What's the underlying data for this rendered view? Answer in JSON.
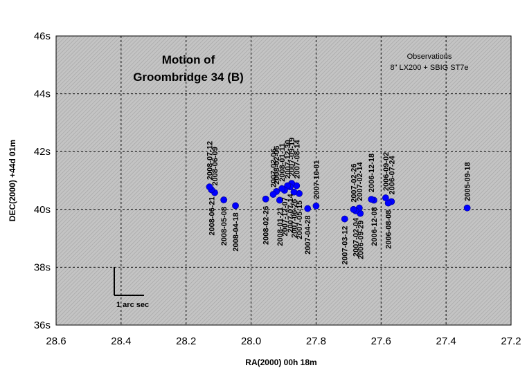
{
  "chart_data": {
    "type": "scatter",
    "title_lines": [
      "Motion of",
      "Groombridge 34 (B)"
    ],
    "note_lines": [
      "Observations",
      "8\" LX200 + SBIG ST7e"
    ],
    "xlabel": "RA(2000) 00h 18m",
    "ylabel": "DEC(2000) +44d 01m",
    "xlim": [
      28.6,
      27.2
    ],
    "ylim": [
      36,
      46
    ],
    "x_reversed": true,
    "x_ticks": [
      "28.6",
      "28.4",
      "28.2",
      "28.0",
      "27.8",
      "27.6",
      "27.4",
      "27.2"
    ],
    "y_ticks": [
      "36s",
      "38s",
      "40s",
      "42s",
      "44s",
      "46s"
    ],
    "grid": true,
    "scale_bar_label": "1 arc sec",
    "points": [
      {
        "x": 27.335,
        "y": 40.05,
        "label": "2005-09-18",
        "pos": "above"
      },
      {
        "x": 27.568,
        "y": 40.27,
        "label": "2006-07-24",
        "pos": "above"
      },
      {
        "x": 27.578,
        "y": 40.22,
        "label": "2006-08-08",
        "pos": "below"
      },
      {
        "x": 27.586,
        "y": 40.4,
        "label": "2006-09-02",
        "pos": "above"
      },
      {
        "x": 27.622,
        "y": 40.32,
        "label": "2006-12-08",
        "pos": "below"
      },
      {
        "x": 27.63,
        "y": 40.35,
        "label": "2006-12-18",
        "pos": "above"
      },
      {
        "x": 27.664,
        "y": 39.86,
        "label": "2006-09-29",
        "pos": "below"
      },
      {
        "x": 27.667,
        "y": 40.05,
        "label": "2007-02-14",
        "pos": "above"
      },
      {
        "x": 27.678,
        "y": 39.95,
        "label": "2007-02-04",
        "pos": "below"
      },
      {
        "x": 27.685,
        "y": 40.0,
        "label": "2007-02-26",
        "pos": "above"
      },
      {
        "x": 27.712,
        "y": 39.67,
        "label": "2007-03-12",
        "pos": "below"
      },
      {
        "x": 27.8,
        "y": 40.12,
        "label": "2007-10-01",
        "pos": "above"
      },
      {
        "x": 27.826,
        "y": 40.03,
        "label": "2007-04-28",
        "pos": "below"
      },
      {
        "x": 27.852,
        "y": 40.55,
        "label": "2007-05-15",
        "pos": "below"
      },
      {
        "x": 27.86,
        "y": 40.82,
        "label": "2007-08-14",
        "pos": "above"
      },
      {
        "x": 27.868,
        "y": 40.6,
        "label": "2007-06-26",
        "pos": "below"
      },
      {
        "x": 27.875,
        "y": 40.9,
        "label": "2007-09-19",
        "pos": "above"
      },
      {
        "x": 27.88,
        "y": 40.78,
        "label": "2007-07-14",
        "pos": "below"
      },
      {
        "x": 27.888,
        "y": 40.82,
        "label": "2007-12-30",
        "pos": "above"
      },
      {
        "x": 27.897,
        "y": 40.66,
        "label": "2007-12-07",
        "pos": "below"
      },
      {
        "x": 27.905,
        "y": 40.72,
        "label": "2008-01-11",
        "pos": "above"
      },
      {
        "x": 27.912,
        "y": 40.32,
        "label": "2008-01-21",
        "pos": "below"
      },
      {
        "x": 27.922,
        "y": 40.62,
        "label": "2008-02-06",
        "pos": "above"
      },
      {
        "x": 27.932,
        "y": 40.52,
        "label": "2007-02-06",
        "pos": "above"
      },
      {
        "x": 27.955,
        "y": 40.36,
        "label": "2008-02-26",
        "pos": "below"
      },
      {
        "x": 28.048,
        "y": 40.13,
        "label": "2008-04-18",
        "pos": "below"
      },
      {
        "x": 28.084,
        "y": 40.33,
        "label": "2008-05-08",
        "pos": "below"
      },
      {
        "x": 28.112,
        "y": 40.58,
        "label": "2008-06-09",
        "pos": "above"
      },
      {
        "x": 28.122,
        "y": 40.68,
        "label": "2008-06-21",
        "pos": "below"
      },
      {
        "x": 28.128,
        "y": 40.78,
        "label": "2008-07-12",
        "pos": "above"
      }
    ],
    "colors": {
      "point": "#0000ff",
      "plot_bg": "#c0c0c0",
      "hatch": "#a8a8a8"
    }
  }
}
